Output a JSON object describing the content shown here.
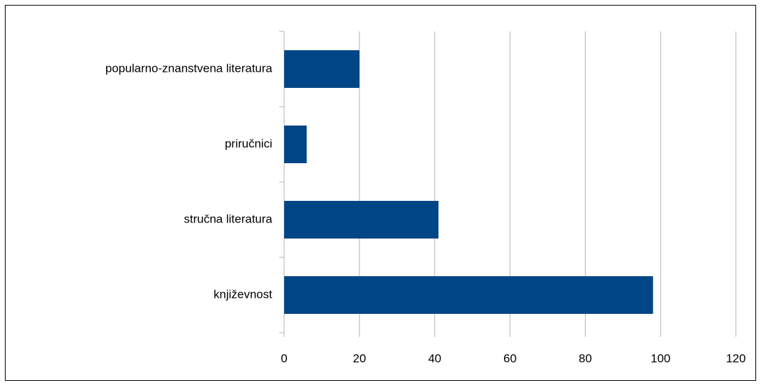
{
  "chart_data": {
    "type": "bar",
    "orientation": "horizontal",
    "categories": [
      "popularno-znanstvena literatura",
      "priručnici",
      "stručna literatura",
      "književnost"
    ],
    "values": [
      20,
      6,
      41,
      98
    ],
    "color": "#004586",
    "xlim": [
      0,
      120
    ],
    "xticks": [
      0,
      20,
      40,
      60,
      80,
      100,
      120
    ],
    "grid": true
  }
}
